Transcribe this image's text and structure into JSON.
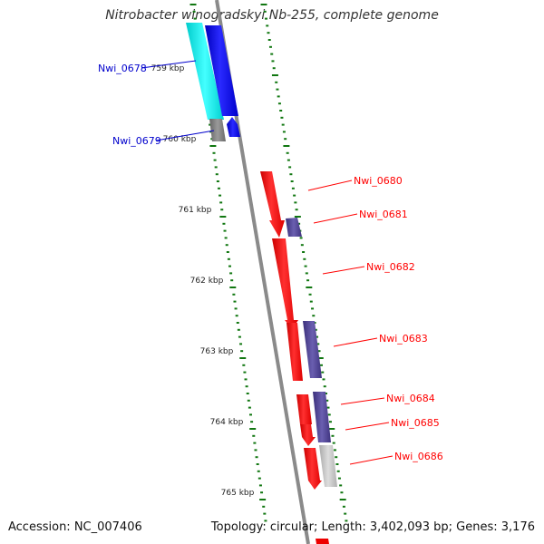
{
  "title": "Nitrobacter winogradskyi Nb-255, complete genome",
  "footer": {
    "accession": "Accession: NC_007406",
    "stats": "Topology: circular; Length: 3,402,093 bp; Genes: 3,176"
  },
  "scale_labels": [
    "759 kbp",
    "760 kbp",
    "761 kbp",
    "762 kbp",
    "763 kbp",
    "764 kbp",
    "765 kbp"
  ],
  "gene_labels": [
    {
      "id": "Nwi_0678",
      "color": "#0000cc"
    },
    {
      "id": "Nwi_0679",
      "color": "#0000cc"
    },
    {
      "id": "Nwi_0680",
      "color": "#ff0000"
    },
    {
      "id": "Nwi_0681",
      "color": "#ff0000"
    },
    {
      "id": "Nwi_0682",
      "color": "#ff0000"
    },
    {
      "id": "Nwi_0683",
      "color": "#ff0000"
    },
    {
      "id": "Nwi_0684",
      "color": "#ff0000"
    },
    {
      "id": "Nwi_0685",
      "color": "#ff0000"
    },
    {
      "id": "Nwi_0686",
      "color": "#ff0000"
    }
  ],
  "colors": {
    "forward_gene": "#ff0000",
    "reverse_gene": "#0000ff",
    "cyan_feature": "#00e5e5",
    "purple_feature": "#4a3f8c",
    "gray_feature": "#888888",
    "backbone": "#888888",
    "tick": "#117711"
  }
}
